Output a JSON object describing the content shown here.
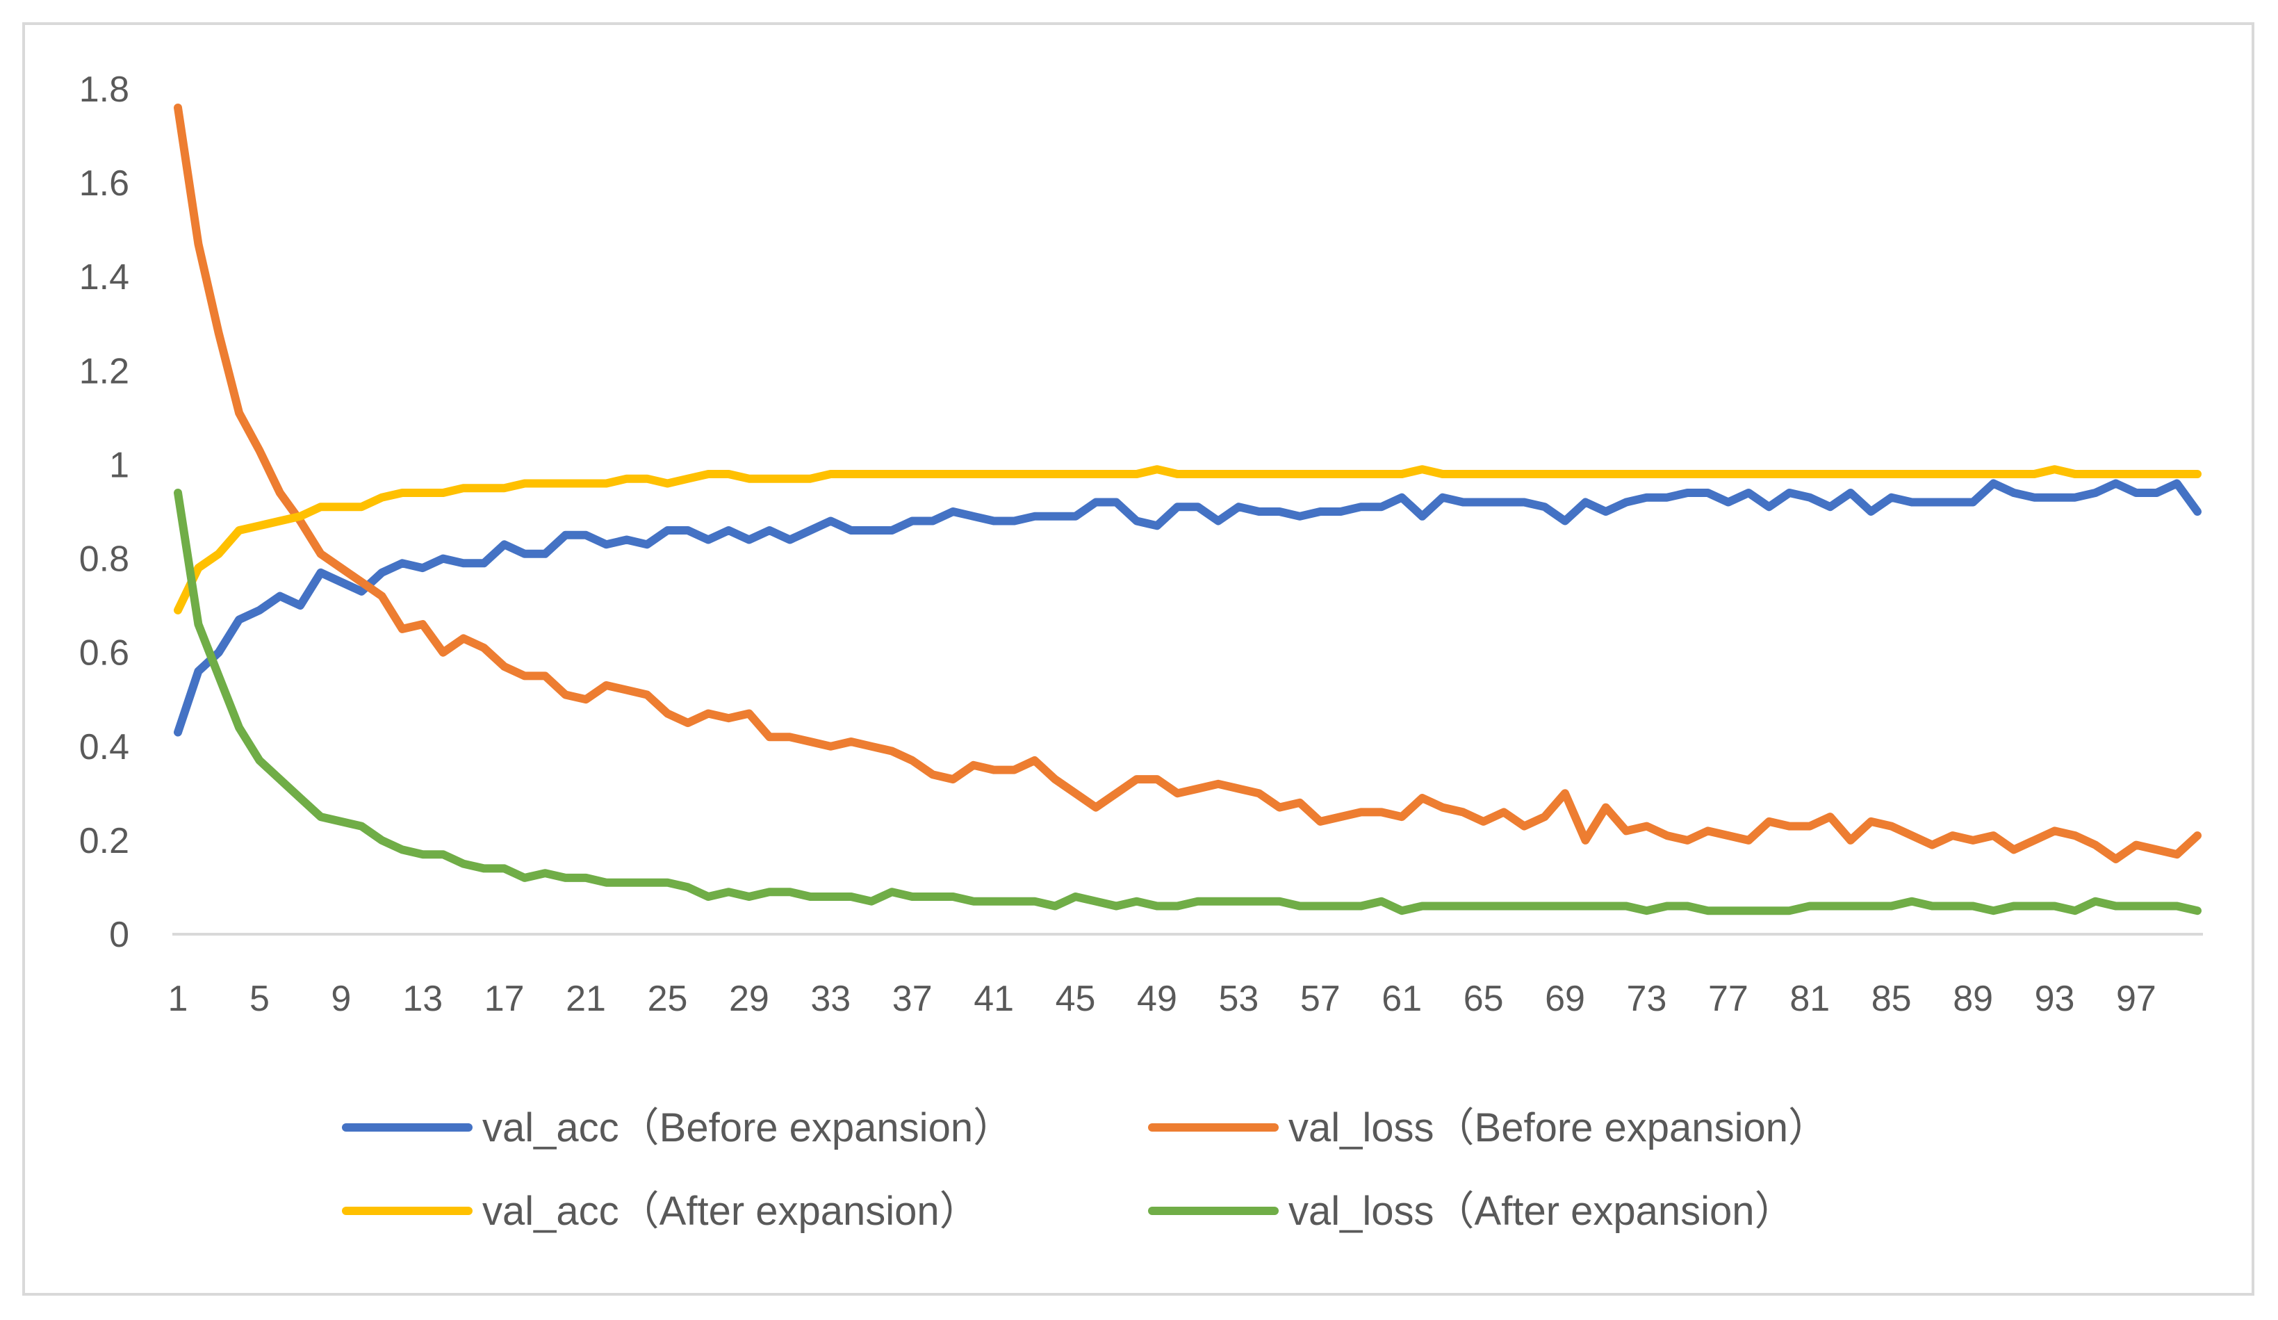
{
  "chart_data": {
    "type": "line",
    "title": "",
    "xlabel": "",
    "ylabel": "",
    "ylim": [
      0,
      1.8
    ],
    "ytick_step": 0.2,
    "ytick_labels": [
      "0",
      "0.2",
      "0.4",
      "0.6",
      "0.8",
      "1",
      "1.2",
      "1.4",
      "1.6",
      "1.8"
    ],
    "x_range": [
      1,
      100
    ],
    "xtick_labels": [
      "1",
      "5",
      "9",
      "13",
      "17",
      "21",
      "25",
      "29",
      "33",
      "37",
      "41",
      "45",
      "49",
      "53",
      "57",
      "61",
      "65",
      "69",
      "73",
      "77",
      "81",
      "85",
      "89",
      "93",
      "97"
    ],
    "legend_position": "bottom",
    "grid": "horizontal baseline only",
    "series": [
      {
        "name": "val_acc（Before expansion）",
        "color": "#4472C4",
        "values": [
          0.43,
          0.56,
          0.6,
          0.67,
          0.69,
          0.72,
          0.7,
          0.77,
          0.75,
          0.73,
          0.77,
          0.79,
          0.78,
          0.8,
          0.79,
          0.79,
          0.83,
          0.81,
          0.81,
          0.85,
          0.85,
          0.83,
          0.84,
          0.83,
          0.86,
          0.86,
          0.84,
          0.86,
          0.84,
          0.86,
          0.84,
          0.86,
          0.88,
          0.86,
          0.86,
          0.86,
          0.88,
          0.88,
          0.9,
          0.89,
          0.88,
          0.88,
          0.89,
          0.89,
          0.89,
          0.92,
          0.92,
          0.88,
          0.87,
          0.91,
          0.91,
          0.88,
          0.91,
          0.9,
          0.9,
          0.89,
          0.9,
          0.9,
          0.91,
          0.91,
          0.93,
          0.89,
          0.93,
          0.92,
          0.92,
          0.92,
          0.92,
          0.91,
          0.88,
          0.92,
          0.9,
          0.92,
          0.93,
          0.93,
          0.94,
          0.94,
          0.92,
          0.94,
          0.91,
          0.94,
          0.93,
          0.91,
          0.94,
          0.9,
          0.93,
          0.92,
          0.92,
          0.92,
          0.92,
          0.96,
          0.94,
          0.93,
          0.93,
          0.93,
          0.94,
          0.96,
          0.94,
          0.94,
          0.96,
          0.9
        ]
      },
      {
        "name": "val_loss（Before expansion）",
        "color": "#ED7D31",
        "values": [
          1.76,
          1.47,
          1.28,
          1.11,
          1.03,
          0.94,
          0.88,
          0.81,
          0.78,
          0.75,
          0.72,
          0.65,
          0.66,
          0.6,
          0.63,
          0.61,
          0.57,
          0.55,
          0.55,
          0.51,
          0.5,
          0.53,
          0.52,
          0.51,
          0.47,
          0.45,
          0.47,
          0.46,
          0.47,
          0.42,
          0.42,
          0.41,
          0.4,
          0.41,
          0.4,
          0.39,
          0.37,
          0.34,
          0.33,
          0.36,
          0.35,
          0.35,
          0.37,
          0.33,
          0.3,
          0.27,
          0.3,
          0.33,
          0.33,
          0.3,
          0.31,
          0.32,
          0.31,
          0.3,
          0.27,
          0.28,
          0.24,
          0.25,
          0.26,
          0.26,
          0.25,
          0.29,
          0.27,
          0.26,
          0.24,
          0.26,
          0.23,
          0.25,
          0.3,
          0.2,
          0.27,
          0.22,
          0.23,
          0.21,
          0.2,
          0.22,
          0.21,
          0.2,
          0.24,
          0.23,
          0.23,
          0.25,
          0.2,
          0.24,
          0.23,
          0.21,
          0.19,
          0.21,
          0.2,
          0.21,
          0.18,
          0.2,
          0.22,
          0.21,
          0.19,
          0.16,
          0.19,
          0.18,
          0.17,
          0.21
        ]
      },
      {
        "name": "val_acc（After expansion）",
        "color": "#FFC000",
        "values": [
          0.69,
          0.78,
          0.81,
          0.86,
          0.87,
          0.88,
          0.89,
          0.91,
          0.91,
          0.91,
          0.93,
          0.94,
          0.94,
          0.94,
          0.95,
          0.95,
          0.95,
          0.96,
          0.96,
          0.96,
          0.96,
          0.96,
          0.97,
          0.97,
          0.96,
          0.97,
          0.98,
          0.98,
          0.97,
          0.97,
          0.97,
          0.97,
          0.98,
          0.98,
          0.98,
          0.98,
          0.98,
          0.98,
          0.98,
          0.98,
          0.98,
          0.98,
          0.98,
          0.98,
          0.98,
          0.98,
          0.98,
          0.98,
          0.99,
          0.98,
          0.98,
          0.98,
          0.98,
          0.98,
          0.98,
          0.98,
          0.98,
          0.98,
          0.98,
          0.98,
          0.98,
          0.99,
          0.98,
          0.98,
          0.98,
          0.98,
          0.98,
          0.98,
          0.98,
          0.98,
          0.98,
          0.98,
          0.98,
          0.98,
          0.98,
          0.98,
          0.98,
          0.98,
          0.98,
          0.98,
          0.98,
          0.98,
          0.98,
          0.98,
          0.98,
          0.98,
          0.98,
          0.98,
          0.98,
          0.98,
          0.98,
          0.98,
          0.99,
          0.98,
          0.98,
          0.98,
          0.98,
          0.98,
          0.98,
          0.98
        ]
      },
      {
        "name": "val_loss（After expansion）",
        "color": "#70AD47",
        "values": [
          0.94,
          0.66,
          0.55,
          0.44,
          0.37,
          0.33,
          0.29,
          0.25,
          0.24,
          0.23,
          0.2,
          0.18,
          0.17,
          0.17,
          0.15,
          0.14,
          0.14,
          0.12,
          0.13,
          0.12,
          0.12,
          0.11,
          0.11,
          0.11,
          0.11,
          0.1,
          0.08,
          0.09,
          0.08,
          0.09,
          0.09,
          0.08,
          0.08,
          0.08,
          0.07,
          0.09,
          0.08,
          0.08,
          0.08,
          0.07,
          0.07,
          0.07,
          0.07,
          0.06,
          0.08,
          0.07,
          0.06,
          0.07,
          0.06,
          0.06,
          0.07,
          0.07,
          0.07,
          0.07,
          0.07,
          0.06,
          0.06,
          0.06,
          0.06,
          0.07,
          0.05,
          0.06,
          0.06,
          0.06,
          0.06,
          0.06,
          0.06,
          0.06,
          0.06,
          0.06,
          0.06,
          0.06,
          0.05,
          0.06,
          0.06,
          0.05,
          0.05,
          0.05,
          0.05,
          0.05,
          0.06,
          0.06,
          0.06,
          0.06,
          0.06,
          0.07,
          0.06,
          0.06,
          0.06,
          0.05,
          0.06,
          0.06,
          0.06,
          0.05,
          0.07,
          0.06,
          0.06,
          0.06,
          0.06,
          0.05
        ]
      }
    ]
  }
}
